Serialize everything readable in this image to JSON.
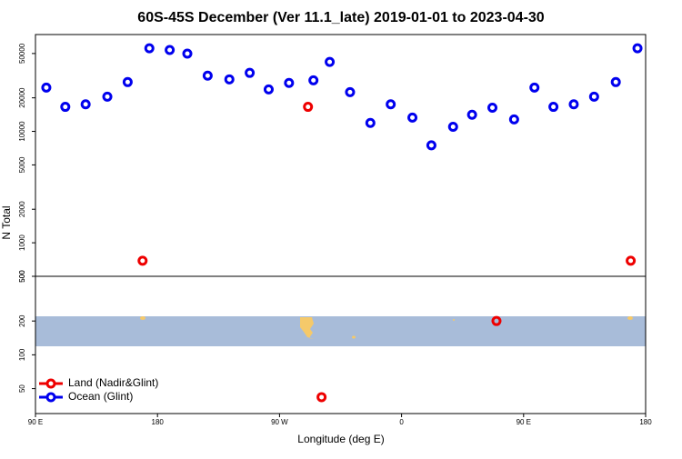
{
  "chart_data": [
    {
      "type": "scatter",
      "title": "60S-45S December (Ver 11.1_late)   2019-01-01 to 2023-04-30",
      "ylabel": "N Total",
      "log_y": true,
      "xlim": [
        90,
        540
      ],
      "ylim": [
        500,
        74000
      ],
      "yticks": [
        500,
        1000,
        2000,
        5000,
        10000,
        20000,
        50000
      ],
      "series": [
        {
          "name": "Land (Nadir&Glint)",
          "color": "#ee0000",
          "x": [
            169,
            291,
            529
          ],
          "values": [
            690,
            16600,
            690
          ]
        },
        {
          "name": "Ocean (Glint)",
          "color": "#0000ee",
          "x": [
            98,
            112,
            127,
            143,
            158,
            174,
            189,
            202,
            217,
            233,
            248,
            262,
            277,
            295,
            307,
            322,
            337,
            352,
            368,
            382,
            398,
            412,
            427,
            443,
            458,
            472,
            487,
            502,
            518,
            534
          ],
          "values": [
            24700,
            16600,
            17500,
            20500,
            27700,
            55700,
            53800,
            49900,
            31600,
            29300,
            33500,
            23800,
            27200,
            28700,
            42000,
            22500,
            11900,
            17500,
            13300,
            7500,
            11000,
            14100,
            16300,
            12800,
            24700,
            16600,
            17500,
            20500,
            27700,
            55700
          ]
        }
      ]
    },
    {
      "type": "scatter",
      "xlabel": "Longitude (deg E)",
      "log_y": true,
      "legend": "lower left",
      "xlim": [
        90,
        540
      ],
      "ylim": [
        30,
        500
      ],
      "yticks": [
        50,
        100,
        200,
        500
      ],
      "xticks": [
        {
          "value": 90,
          "label": "90 E"
        },
        {
          "value": 180,
          "label": "180"
        },
        {
          "value": 270,
          "label": "90 W"
        },
        {
          "value": 360,
          "label": "0"
        },
        {
          "value": 450,
          "label": "90 E"
        },
        {
          "value": 540,
          "label": "180"
        }
      ],
      "series": [
        {
          "color": "#ee0000",
          "x": [
            430,
            301
          ],
          "values": [
            200,
            42
          ]
        }
      ]
    }
  ]
}
